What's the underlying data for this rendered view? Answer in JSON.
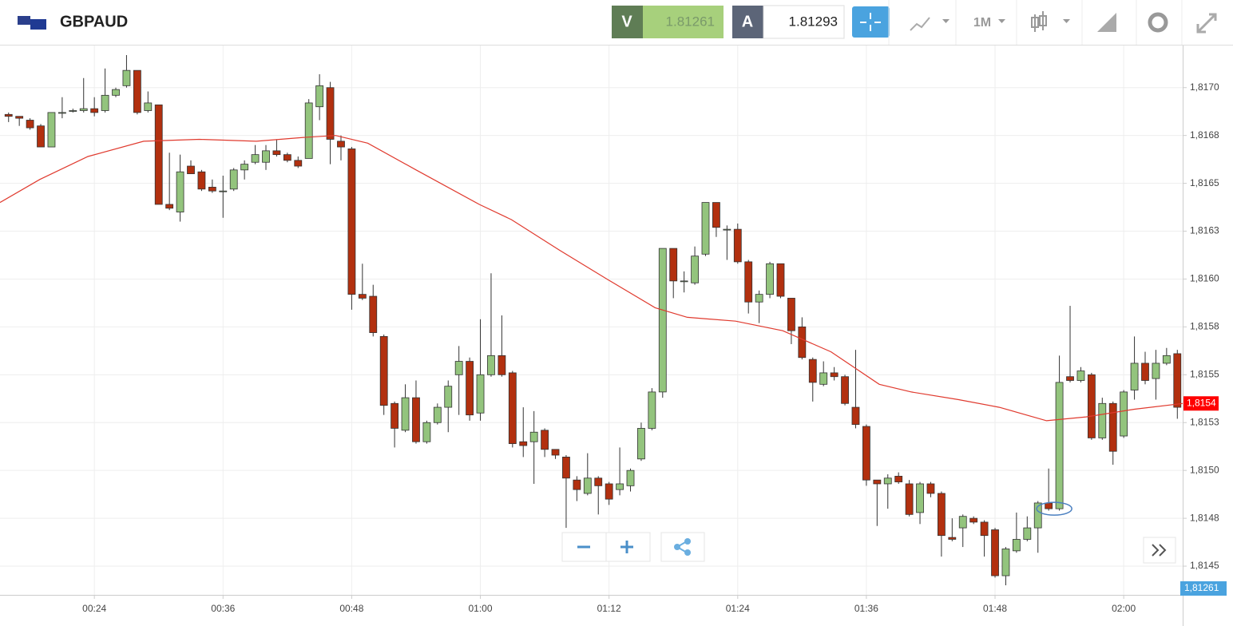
{
  "toolbar": {
    "symbol": "GBPAUD",
    "sell_label": "V",
    "sell_price": "1.81261",
    "buy_label": "A",
    "buy_price": "1.81293",
    "timeframe": "1M"
  },
  "chart_data": {
    "type": "candlestick",
    "x": [
      16,
      17,
      18,
      19,
      20,
      21,
      22,
      23,
      24,
      25,
      26,
      27,
      28,
      29,
      30,
      31,
      32,
      33,
      34,
      35,
      36,
      37,
      38,
      39,
      40,
      41,
      42,
      43,
      44,
      45,
      46,
      47,
      48,
      49,
      50,
      51,
      52,
      53,
      54,
      55,
      56,
      57,
      58,
      59,
      60,
      61,
      62,
      63,
      64,
      65,
      66,
      67,
      68,
      69,
      70,
      71,
      72,
      73,
      74,
      75,
      76,
      77,
      78,
      79,
      80,
      81,
      82,
      83,
      84,
      85,
      86,
      87,
      88,
      89,
      90,
      91,
      92,
      93,
      94,
      95,
      96,
      97,
      98,
      99,
      100,
      101,
      102,
      103,
      104,
      105,
      106,
      107,
      108,
      109,
      110,
      111,
      112,
      113,
      114,
      115,
      116,
      117,
      118,
      119,
      120,
      121,
      122,
      123,
      124,
      125
    ],
    "open": [
      1.81686,
      1.81685,
      1.81683,
      1.8168,
      1.81669,
      1.81687,
      1.81688,
      1.81688,
      1.81689,
      1.81688,
      1.81696,
      1.81701,
      1.81709,
      1.81688,
      1.81691,
      1.81639,
      1.81635,
      1.81659,
      1.81656,
      1.81648,
      1.81646,
      1.81647,
      1.81657,
      1.81661,
      1.81661,
      1.81667,
      1.81665,
      1.81662,
      1.81663,
      1.8169,
      1.817,
      1.81672,
      1.81668,
      1.81592,
      1.81591,
      1.8157,
      1.81535,
      1.81521,
      1.81538,
      1.81515,
      1.81525,
      1.81533,
      1.8155,
      1.81557,
      1.8153,
      1.8155,
      1.8156,
      1.81551,
      1.81515,
      1.81515,
      1.81521,
      1.81511,
      1.81507,
      1.81495,
      1.81488,
      1.81496,
      1.81493,
      1.8149,
      1.81492,
      1.81506,
      1.81522,
      1.81541,
      1.81616,
      1.81599,
      1.81598,
      1.81613,
      1.8164,
      1.81626,
      1.81626,
      1.81609,
      1.81588,
      1.81592,
      1.81608,
      1.8159,
      1.81575,
      1.81558,
      1.81545,
      1.81551,
      1.81549,
      1.81533,
      1.81523,
      1.81495,
      1.81493,
      1.81497,
      1.81493,
      1.81478,
      1.81493,
      1.81488,
      1.81465,
      1.8147,
      1.81475,
      1.81473,
      1.81469,
      1.81445,
      1.81458,
      1.81464,
      1.8147,
      1.81483,
      1.8148,
      1.81549,
      1.81547,
      1.8155,
      1.81517,
      1.81535,
      1.81518,
      1.81542,
      1.81556,
      1.81548,
      1.81556,
      1.81561
    ],
    "high": [
      1.81687,
      1.81685,
      1.81684,
      1.81681,
      1.81687,
      1.81695,
      1.81689,
      1.81705,
      1.81695,
      1.8171,
      1.817,
      1.81717,
      1.81709,
      1.81698,
      1.81691,
      1.81666,
      1.81665,
      1.81662,
      1.81657,
      1.81652,
      1.81654,
      1.81658,
      1.81662,
      1.8167,
      1.8167,
      1.81673,
      1.81666,
      1.81664,
      1.81694,
      1.81707,
      1.81703,
      1.81675,
      1.81669,
      1.81608,
      1.81597,
      1.81571,
      1.81536,
      1.81545,
      1.81547,
      1.81526,
      1.81535,
      1.81547,
      1.81565,
      1.81559,
      1.81579,
      1.81603,
      1.81581,
      1.81552,
      1.81533,
      1.81531,
      1.81522,
      1.81511,
      1.81508,
      1.81497,
      1.81509,
      1.81497,
      1.81494,
      1.81512,
      1.81501,
      1.81525,
      1.81543,
      1.81616,
      1.81616,
      1.81604,
      1.81617,
      1.8164,
      1.8164,
      1.81628,
      1.81629,
      1.8161,
      1.81594,
      1.81609,
      1.81608,
      1.8159,
      1.8158,
      1.81559,
      1.81557,
      1.81554,
      1.8155,
      1.81563,
      1.81524,
      1.81495,
      1.81498,
      1.81499,
      1.81495,
      1.81494,
      1.81494,
      1.81489,
      1.81475,
      1.81477,
      1.81476,
      1.81474,
      1.8147,
      1.8146,
      1.81478,
      1.81476,
      1.81484,
      1.81501,
      1.8156,
      1.81586,
      1.81554,
      1.81551,
      1.81538,
      1.81536,
      1.81542,
      1.8157,
      1.81562,
      1.81563,
      1.81564,
      1.81563
    ],
    "low": [
      1.81682,
      1.8168,
      1.81678,
      1.81669,
      1.81669,
      1.81684,
      1.81687,
      1.81687,
      1.81685,
      1.81687,
      1.81695,
      1.817,
      1.81686,
      1.81687,
      1.81639,
      1.81636,
      1.8163,
      1.81655,
      1.81646,
      1.81645,
      1.81632,
      1.81646,
      1.81652,
      1.8166,
      1.81657,
      1.81664,
      1.81661,
      1.81658,
      1.81663,
      1.81683,
      1.8166,
      1.81662,
      1.81584,
      1.81589,
      1.8157,
      1.81529,
      1.81512,
      1.8152,
      1.81514,
      1.81514,
      1.81524,
      1.8152,
      1.81529,
      1.81526,
      1.81526,
      1.81549,
      1.81549,
      1.81512,
      1.81507,
      1.81493,
      1.81507,
      1.81506,
      1.8147,
      1.81484,
      1.81487,
      1.81477,
      1.81482,
      1.81487,
      1.81489,
      1.81505,
      1.81521,
      1.81538,
      1.8159,
      1.81593,
      1.81597,
      1.81612,
      1.81622,
      1.8161,
      1.81608,
      1.81582,
      1.81577,
      1.8159,
      1.8159,
      1.81566,
      1.81558,
      1.81536,
      1.81544,
      1.81547,
      1.81534,
      1.81522,
      1.81492,
      1.81471,
      1.8148,
      1.81493,
      1.81476,
      1.81472,
      1.81486,
      1.81455,
      1.81463,
      1.8146,
      1.81472,
      1.81455,
      1.81444,
      1.8144,
      1.81457,
      1.81463,
      1.81457,
      1.81479,
      1.81479,
      1.81546,
      1.81546,
      1.81516,
      1.81516,
      1.81503,
      1.81517,
      1.81537,
      1.81545,
      1.81537,
      1.81555,
      1.81527
    ],
    "close": [
      1.81685,
      1.81684,
      1.81679,
      1.81669,
      1.81687,
      1.81687,
      1.81688,
      1.81689,
      1.81687,
      1.81696,
      1.81699,
      1.81709,
      1.81687,
      1.81692,
      1.81639,
      1.81637,
      1.81656,
      1.81655,
      1.81647,
      1.81646,
      1.81646,
      1.81657,
      1.8166,
      1.81665,
      1.81667,
      1.81665,
      1.81662,
      1.81659,
      1.81692,
      1.81701,
      1.81673,
      1.81669,
      1.81592,
      1.8159,
      1.81572,
      1.81534,
      1.81522,
      1.81538,
      1.81515,
      1.81525,
      1.81533,
      1.81544,
      1.81557,
      1.81529,
      1.8155,
      1.8156,
      1.8155,
      1.81514,
      1.81513,
      1.8152,
      1.81511,
      1.81508,
      1.81496,
      1.8149,
      1.81496,
      1.81492,
      1.81485,
      1.81493,
      1.815,
      1.81522,
      1.81541,
      1.81616,
      1.81599,
      1.81599,
      1.81612,
      1.8164,
      1.81627,
      1.81626,
      1.81609,
      1.81588,
      1.81592,
      1.81608,
      1.81591,
      1.81573,
      1.81559,
      1.81546,
      1.81551,
      1.81549,
      1.81535,
      1.81524,
      1.81495,
      1.81493,
      1.81496,
      1.81494,
      1.81477,
      1.81493,
      1.81488,
      1.81466,
      1.81464,
      1.81476,
      1.81473,
      1.81466,
      1.81445,
      1.81459,
      1.81464,
      1.8147,
      1.81483,
      1.8148,
      1.81546,
      1.81547,
      1.81552,
      1.81517,
      1.81535,
      1.8151,
      1.81541,
      1.81556,
      1.81547,
      1.81556,
      1.8156,
      1.81533
    ],
    "up_color": "#93c47d",
    "down_color": "#b2300f",
    "overlay": {
      "type": "line",
      "color": "#e03a2e",
      "x": [
        15.2,
        18.9,
        23.4,
        28.6,
        33.8,
        39.1,
        43.5,
        46.5,
        49.5,
        54.0,
        59.9,
        62.9,
        67.4,
        71.8,
        76.3,
        79.3,
        83.8,
        88.2,
        92.7,
        97.2,
        100.2,
        104.6,
        108.4,
        112.8,
        116.5,
        121.0,
        125.5
      ],
      "values": [
        1.8164,
        1.81652,
        1.81664,
        1.81672,
        1.81673,
        1.81672,
        1.81674,
        1.81675,
        1.81671,
        1.81657,
        1.81639,
        1.81631,
        1.81615,
        1.816,
        1.81585,
        1.8158,
        1.81578,
        1.81573,
        1.81562,
        1.81545,
        1.81541,
        1.81537,
        1.81533,
        1.81526,
        1.81528,
        1.81532,
        1.81535
      ]
    },
    "xlim": [
      15.2,
      125.5
    ],
    "ylim": [
      1.81435,
      1.81722
    ],
    "xticks": [
      {
        "value": 24,
        "label": "00:24"
      },
      {
        "value": 36,
        "label": "00:36"
      },
      {
        "value": 48,
        "label": "00:48"
      },
      {
        "value": 60,
        "label": "01:00"
      },
      {
        "value": 72,
        "label": "01:12"
      },
      {
        "value": 84,
        "label": "01:24"
      },
      {
        "value": 96,
        "label": "01:36"
      },
      {
        "value": 108,
        "label": "01:48"
      },
      {
        "value": 120,
        "label": "02:00"
      }
    ],
    "yticks": [
      {
        "value": 1.8145,
        "label": "1,8145"
      },
      {
        "value": 1.81475,
        "label": "1,8148"
      },
      {
        "value": 1.815,
        "label": "1,8150"
      },
      {
        "value": 1.81525,
        "label": "1,8153"
      },
      {
        "value": 1.8155,
        "label": "1,8155"
      },
      {
        "value": 1.81575,
        "label": "1,8158"
      },
      {
        "value": 1.816,
        "label": "1,8160"
      },
      {
        "value": 1.81625,
        "label": "1,8163"
      },
      {
        "value": 1.8165,
        "label": "1,8165"
      },
      {
        "value": 1.81675,
        "label": "1,8168"
      },
      {
        "value": 1.817,
        "label": "1,8170"
      }
    ],
    "grid": true,
    "last_price": {
      "value": 1.81535,
      "label": "1,8154"
    },
    "bid_tag": "1,81261"
  }
}
